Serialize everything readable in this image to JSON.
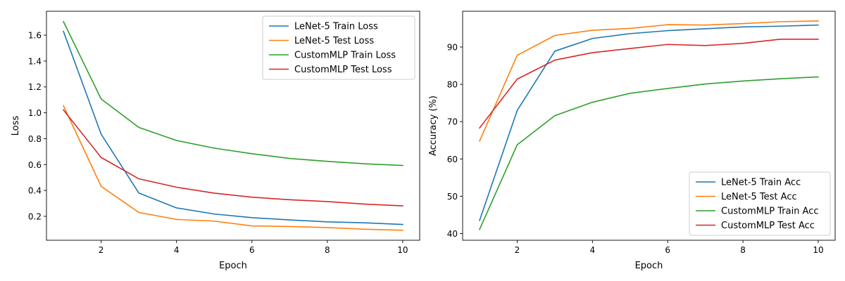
{
  "chart_data": [
    {
      "type": "line",
      "title": "",
      "xlabel": "Epoch",
      "ylabel": "Loss",
      "xlim": [
        0.55,
        10.45
      ],
      "ylim": [
        0.015,
        1.785
      ],
      "xticks": [
        2,
        4,
        6,
        8,
        10
      ],
      "yticks": [
        0.2,
        0.4,
        0.6,
        0.8,
        1.0,
        1.2,
        1.4,
        1.6
      ],
      "ytick_labels": [
        "0.2",
        "0.4",
        "0.6",
        "0.8",
        "1.0",
        "1.2",
        "1.4",
        "1.6"
      ],
      "grid": false,
      "legend_position": "top-right",
      "x": [
        1,
        2,
        3,
        4,
        5,
        6,
        7,
        8,
        9,
        10
      ],
      "series": [
        {
          "name": "LeNet-5 Train Loss",
          "color": "#1f77b4",
          "values": [
            1.63,
            0.835,
            0.38,
            0.265,
            0.218,
            0.19,
            0.172,
            0.157,
            0.15,
            0.137
          ]
        },
        {
          "name": "LeNet-5 Test Loss",
          "color": "#ff7f0e",
          "values": [
            1.055,
            0.432,
            0.23,
            0.176,
            0.163,
            0.126,
            0.121,
            0.113,
            0.1,
            0.092
          ]
        },
        {
          "name": "CustomMLP Train Loss",
          "color": "#2ca02c",
          "values": [
            1.705,
            1.107,
            0.887,
            0.786,
            0.727,
            0.684,
            0.647,
            0.625,
            0.606,
            0.593
          ]
        },
        {
          "name": "CustomMLP Test Loss",
          "color": "#d62728",
          "values": [
            1.022,
            0.655,
            0.49,
            0.425,
            0.379,
            0.348,
            0.328,
            0.314,
            0.294,
            0.281
          ]
        }
      ]
    },
    {
      "type": "line",
      "title": "",
      "xlabel": "Epoch",
      "ylabel": "Accuracy (%)",
      "xlim": [
        0.55,
        10.45
      ],
      "ylim": [
        38.2,
        99.6
      ],
      "xticks": [
        2,
        4,
        6,
        8,
        10
      ],
      "yticks": [
        40,
        50,
        60,
        70,
        80,
        90
      ],
      "ytick_labels": [
        "40",
        "50",
        "60",
        "70",
        "80",
        "90"
      ],
      "grid": false,
      "legend_position": "bottom-right",
      "x": [
        1,
        2,
        3,
        4,
        5,
        6,
        7,
        8,
        9,
        10
      ],
      "series": [
        {
          "name": "LeNet-5 Train Acc",
          "color": "#1f77b4",
          "values": [
            43.5,
            73.0,
            88.9,
            92.3,
            93.6,
            94.4,
            94.9,
            95.4,
            95.6,
            95.9
          ]
        },
        {
          "name": "LeNet-5 Test Acc",
          "color": "#ff7f0e",
          "values": [
            64.8,
            87.8,
            93.1,
            94.5,
            95.0,
            96.0,
            95.9,
            96.3,
            96.8,
            97.0
          ]
        },
        {
          "name": "CustomMLP Train Acc",
          "color": "#2ca02c",
          "values": [
            41.1,
            63.8,
            71.6,
            75.2,
            77.6,
            78.9,
            80.1,
            80.9,
            81.5,
            82.0
          ]
        },
        {
          "name": "CustomMLP Test Acc",
          "color": "#d62728",
          "values": [
            68.3,
            81.4,
            86.5,
            88.5,
            89.6,
            90.7,
            90.4,
            91.0,
            92.1,
            92.1
          ]
        }
      ]
    }
  ]
}
